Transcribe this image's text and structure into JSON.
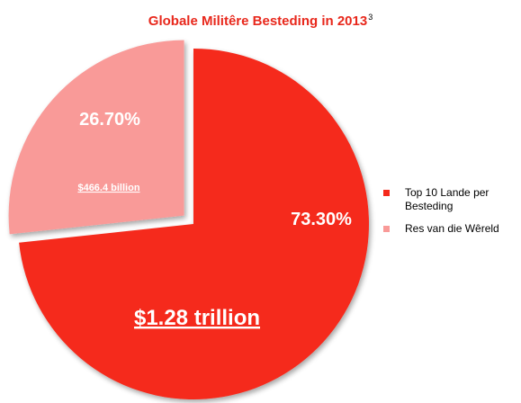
{
  "chart_data": {
    "type": "pie",
    "title": "Globale Militêre Besteding in 2013",
    "title_superscript": "3",
    "slices": [
      {
        "label": "Top 10 Lande per Besteding",
        "value": 73.3,
        "percent_label": "73.30%",
        "amount_label": "$1.28 trillion",
        "color": "#f5291b"
      },
      {
        "label": "Res van die Wêreld",
        "value": 26.7,
        "percent_label": "26.70%",
        "amount_label": "$466.4 billion",
        "color": "#f99a98"
      }
    ],
    "legend_position": "right"
  }
}
